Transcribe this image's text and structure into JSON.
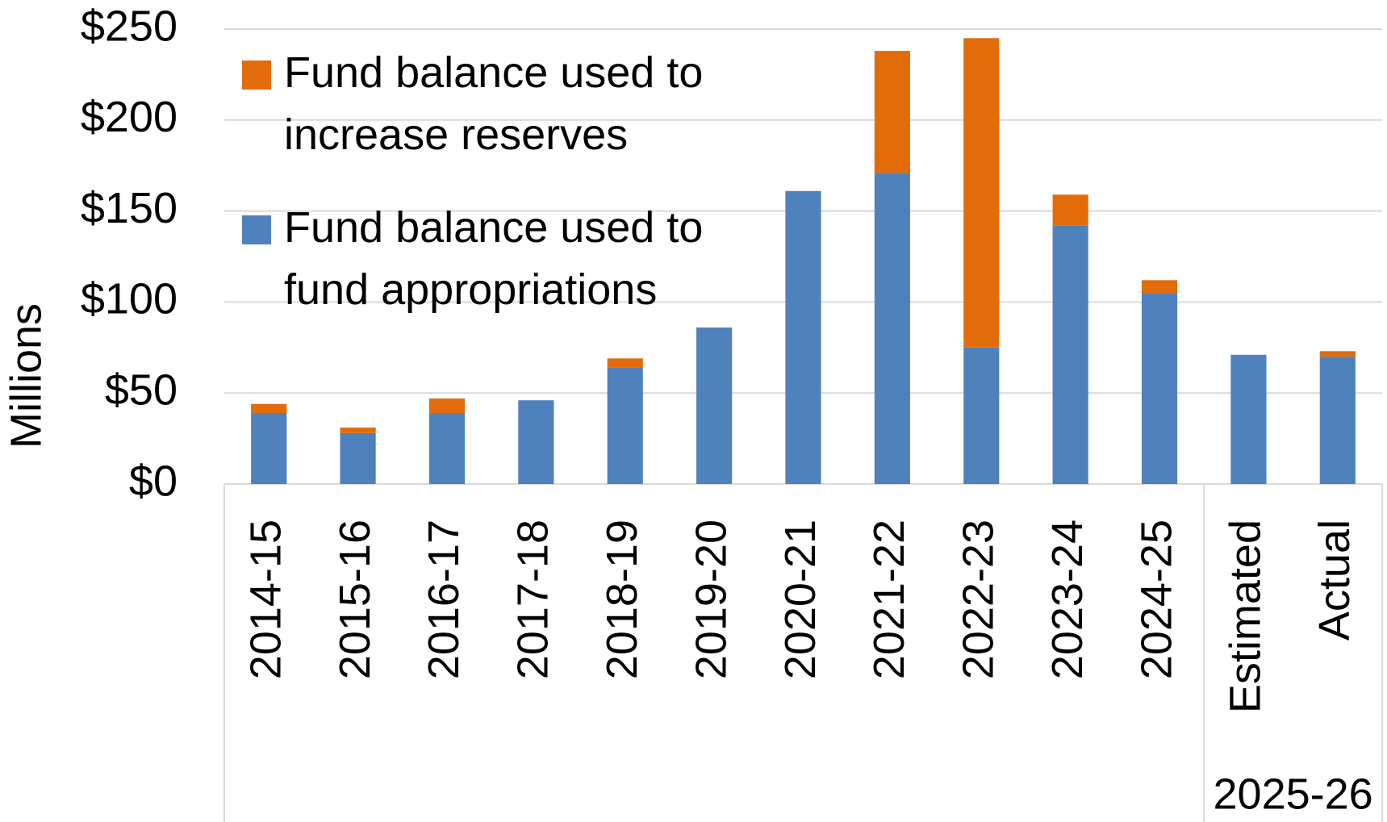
{
  "chart_data": {
    "type": "stacked_bar",
    "ylabel": "Millions",
    "categories": [
      "2014-15",
      "2015-16",
      "2016-17",
      "2017-18",
      "2018-19",
      "2019-20",
      "2020-21",
      "2021-22",
      "2022-23",
      "2023-24",
      "2024-25",
      "Estimated",
      "Actual"
    ],
    "category_group": {
      "label": "2025-26",
      "first": 11,
      "last": 12
    },
    "series": [
      {
        "name": "Fund balance used to fund appropriations",
        "color": "#4f81bd",
        "values": [
          39,
          28,
          39,
          46,
          64,
          86,
          161,
          171,
          75,
          142,
          105,
          71,
          70
        ]
      },
      {
        "name": "Fund balance used to increase reserves",
        "color": "#e36c0a",
        "values": [
          5,
          3,
          8,
          0,
          5,
          0,
          0,
          67,
          170,
          17,
          7,
          0,
          3
        ]
      }
    ],
    "ylim": [
      0,
      250
    ],
    "yticks": [
      {
        "value": 0,
        "label": "$0"
      },
      {
        "value": 50,
        "label": "$50"
      },
      {
        "value": 100,
        "label": "$100"
      },
      {
        "value": 150,
        "label": "$150"
      },
      {
        "value": 200,
        "label": "$200"
      },
      {
        "value": 250,
        "label": "$250"
      }
    ],
    "grid": true,
    "legend": "upper left"
  }
}
